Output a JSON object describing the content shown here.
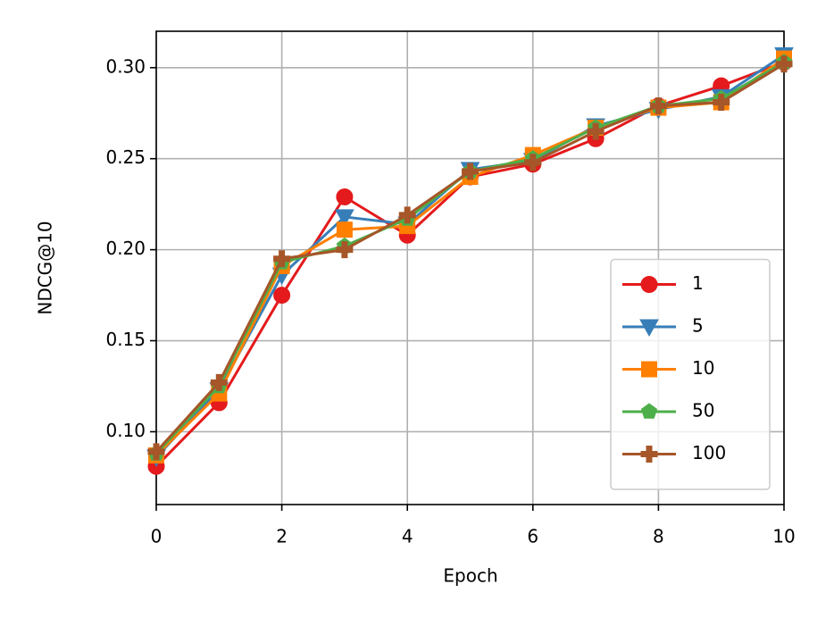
{
  "chart_data": {
    "type": "line",
    "xlabel": "Epoch",
    "ylabel": "NDCG@10",
    "x": [
      0,
      1,
      2,
      3,
      4,
      5,
      6,
      7,
      8,
      9,
      10
    ],
    "xlim": [
      0,
      10
    ],
    "xticks": [
      0,
      2,
      4,
      6,
      8,
      10
    ],
    "ylim": [
      0.06,
      0.32
    ],
    "yticks": [
      {
        "value": 0.1,
        "label": "0.10"
      },
      0.15,
      {
        "value": 0.2,
        "label": "0.20"
      },
      0.25,
      {
        "value": 0.3,
        "label": "0.30"
      }
    ],
    "grid": true,
    "legend": "lower right",
    "series": [
      {
        "name": "1",
        "color": "#e41a1c",
        "marker": "circle",
        "values": [
          0.081,
          0.116,
          0.175,
          0.229,
          0.208,
          0.24,
          0.247,
          0.261,
          0.279,
          0.29,
          0.303
        ]
      },
      {
        "name": "5",
        "color": "#377eb8",
        "marker": "triangle-down",
        "values": [
          0.086,
          0.123,
          0.186,
          0.218,
          0.214,
          0.244,
          0.249,
          0.268,
          0.277,
          0.284,
          0.307
        ]
      },
      {
        "name": "10",
        "color": "#ff7f00",
        "marker": "square",
        "values": [
          0.087,
          0.121,
          0.191,
          0.211,
          0.213,
          0.24,
          0.252,
          0.267,
          0.278,
          0.281,
          0.305
        ]
      },
      {
        "name": "50",
        "color": "#4daf4a",
        "marker": "pentagon",
        "values": [
          0.088,
          0.125,
          0.193,
          0.202,
          0.217,
          0.243,
          0.25,
          0.267,
          0.279,
          0.283,
          0.303
        ]
      },
      {
        "name": "100",
        "color": "#a65628",
        "marker": "plus",
        "values": [
          0.089,
          0.127,
          0.195,
          0.2,
          0.219,
          0.243,
          0.248,
          0.265,
          0.279,
          0.281,
          0.302
        ]
      }
    ]
  }
}
